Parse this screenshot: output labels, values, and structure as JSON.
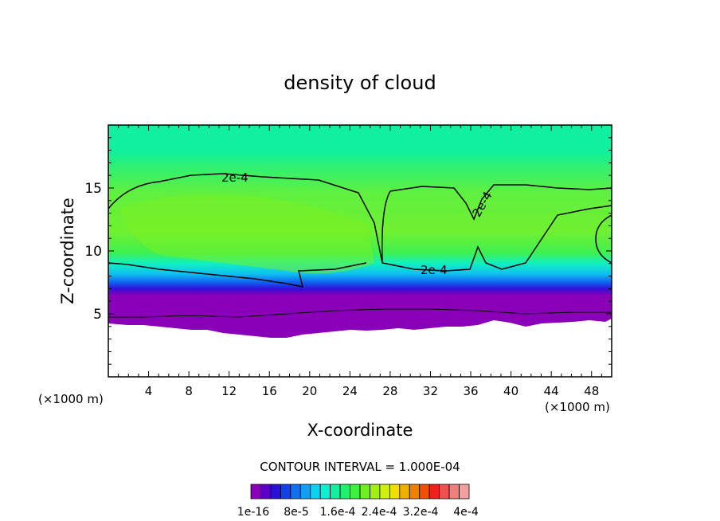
{
  "chart_data": {
    "type": "heatmap",
    "title": "density of cloud",
    "xlabel": "X-coordinate",
    "ylabel": "Z-coordinate",
    "x_unit": "(×1000 m)",
    "z_unit": "(×1000 m)",
    "xlim": [
      0,
      50
    ],
    "ylim": [
      0,
      20
    ],
    "x_ticks": [
      4,
      8,
      12,
      16,
      20,
      24,
      28,
      32,
      36,
      40,
      44,
      48
    ],
    "y_ticks": [
      5,
      10,
      15
    ],
    "contour_interval_text": "CONTOUR INTERVAL = 1.000E-04",
    "contour_labels": [
      "2e-4",
      "2e-4",
      "2e-4"
    ],
    "colorbar": {
      "labels": [
        "1e-16",
        "8e-5",
        "1.6e-4",
        "2.4e-4",
        "3.2e-4",
        "4e-4"
      ],
      "colors": [
        "#8a00b8",
        "#5a00c8",
        "#2a10d8",
        "#1040e8",
        "#1070f0",
        "#10a0f0",
        "#10d0f0",
        "#10f0d0",
        "#10f0a0",
        "#20f070",
        "#40f040",
        "#70f020",
        "#a0f010",
        "#d0f010",
        "#f0e000",
        "#f0b000",
        "#f08000",
        "#f05000",
        "#f02020",
        "#f05050",
        "#f08080",
        "#f0a0a0"
      ],
      "levels": 22
    },
    "field": {
      "cloud_base_km": 4.2,
      "cloud_top_km": 20,
      "upper_contour_level": "2e-4",
      "upper_contour_top_km": 15.5,
      "upper_contour_bottom_km": 8.5
    }
  }
}
